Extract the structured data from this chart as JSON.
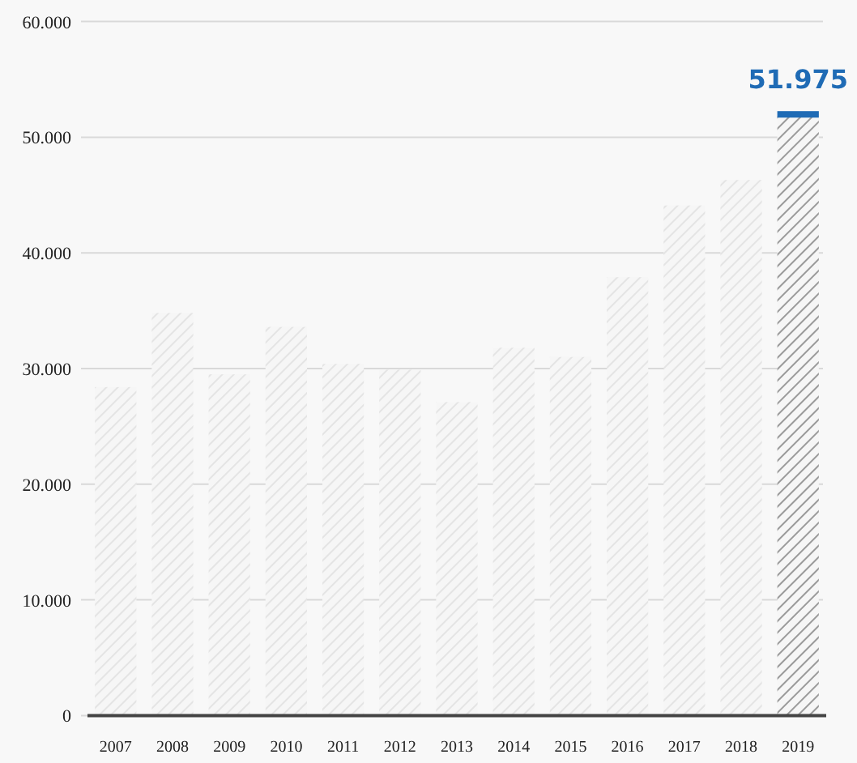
{
  "chart_data": {
    "type": "bar",
    "categories": [
      "2007",
      "2008",
      "2009",
      "2010",
      "2011",
      "2012",
      "2013",
      "2014",
      "2015",
      "2016",
      "2017",
      "2018",
      "2019"
    ],
    "values": [
      28400,
      34800,
      29500,
      33600,
      30400,
      29900,
      27100,
      31800,
      31000,
      37900,
      44100,
      46300,
      51975
    ],
    "colors": [
      "#e4e4e4",
      "#e4e4e4",
      "#e4e4e4",
      "#e4e4e4",
      "#e4e4e4",
      "#e4e4e4",
      "#e4e4e4",
      "#e4e4e4",
      "#e4e4e4",
      "#e4e4e4",
      "#e4e4e4",
      "#e4e4e4",
      "#9a9a9a"
    ],
    "value_labels": [
      null,
      null,
      null,
      null,
      null,
      null,
      null,
      null,
      null,
      null,
      null,
      null,
      "51.975"
    ],
    "ylim": [
      0,
      60000
    ],
    "yticks": [
      {
        "value": 0,
        "label": "0"
      },
      {
        "value": 10000,
        "label": "10.000"
      },
      {
        "value": 20000,
        "label": "20.000"
      },
      {
        "value": 30000,
        "label": "30.000"
      },
      {
        "value": 40000,
        "label": "40.000"
      },
      {
        "value": 50000,
        "label": "50.000"
      },
      {
        "value": 60000,
        "label": "60.000"
      }
    ],
    "grid": "y"
  }
}
